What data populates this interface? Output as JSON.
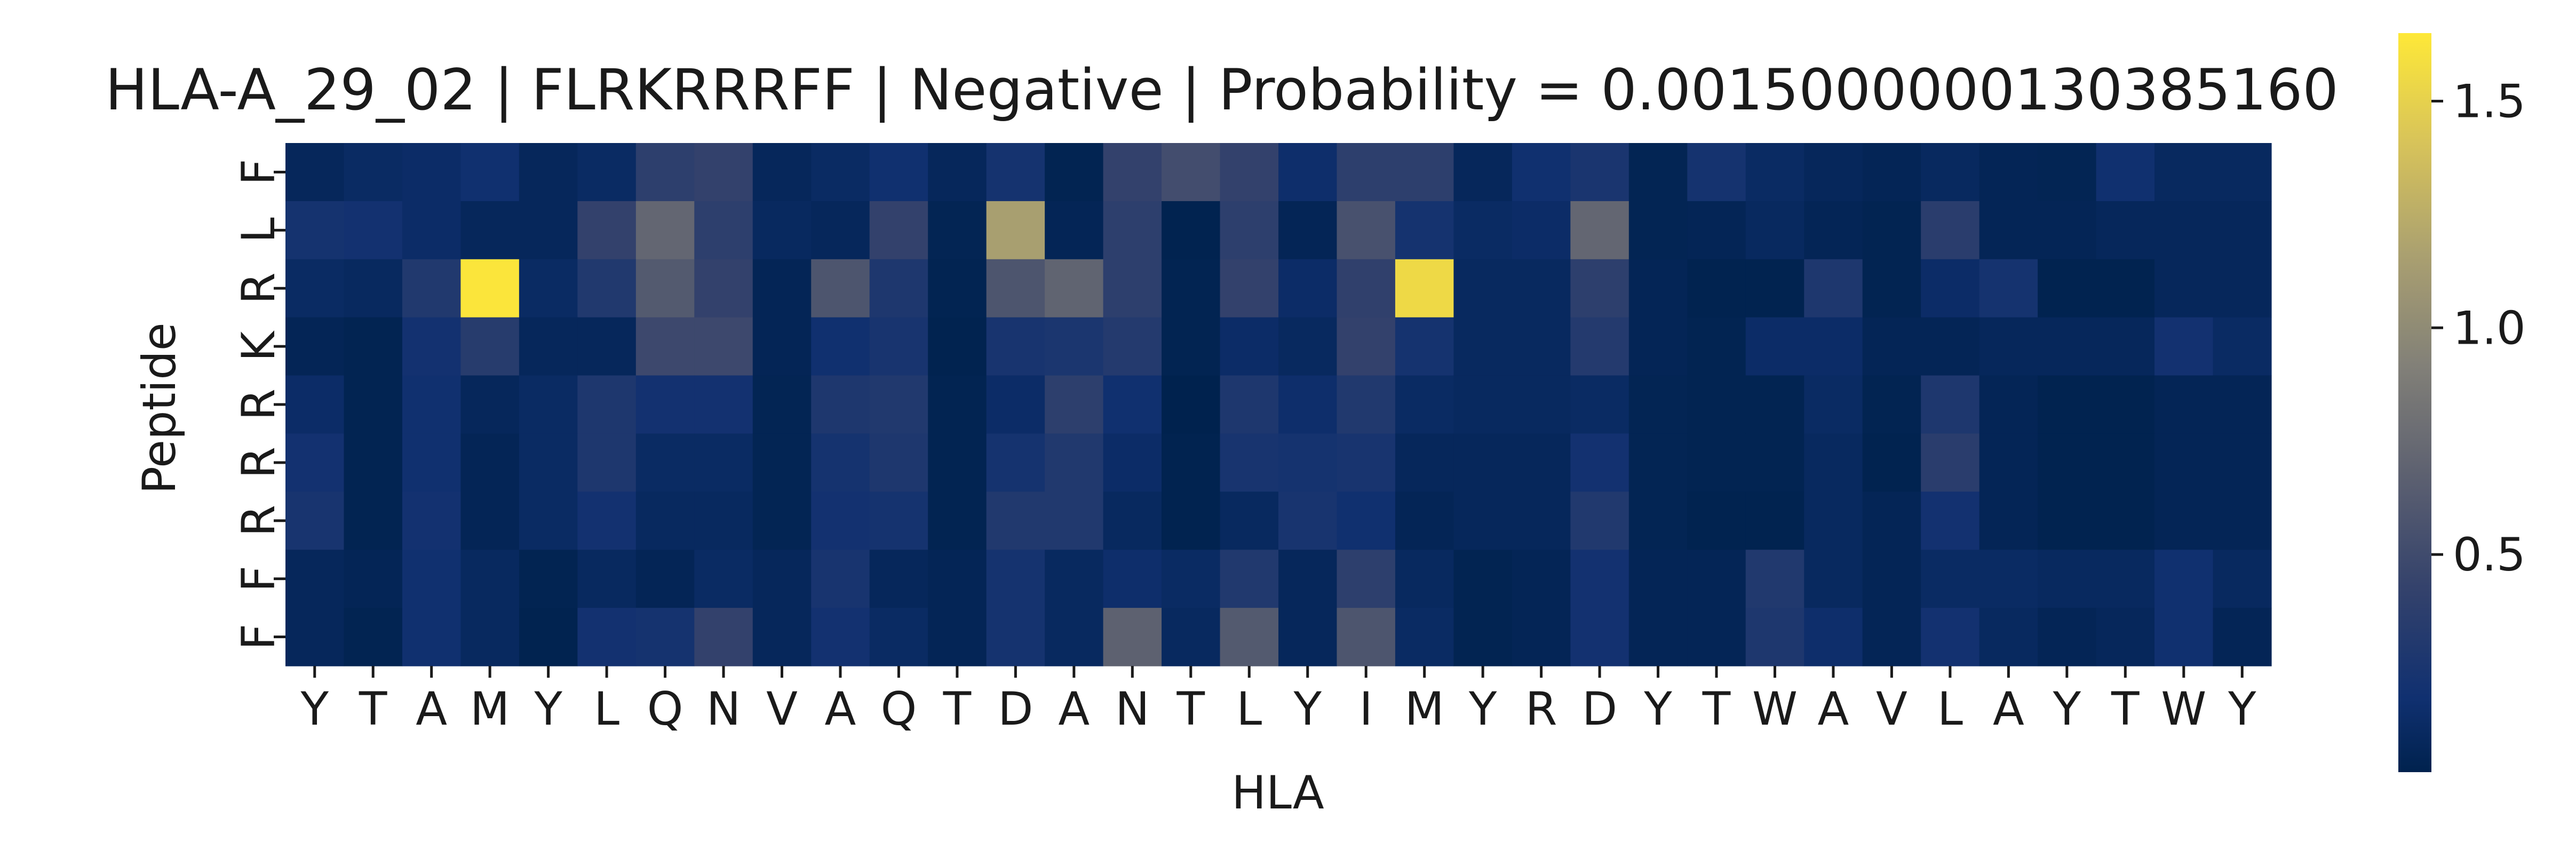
{
  "chart_data": {
    "type": "heatmap",
    "title": "HLA-A_29_02 | FLRKRRRFF | Negative | Probability = 0.0015000000130385160",
    "xlabel": "HLA",
    "ylabel": "Peptide",
    "x_categories": [
      "Y",
      "T",
      "A",
      "M",
      "Y",
      "L",
      "Q",
      "N",
      "V",
      "A",
      "Q",
      "T",
      "D",
      "A",
      "N",
      "T",
      "L",
      "Y",
      "I",
      "M",
      "Y",
      "R",
      "D",
      "Y",
      "T",
      "W",
      "A",
      "V",
      "L",
      "A",
      "Y",
      "T",
      "W",
      "Y"
    ],
    "y_categories": [
      "F",
      "L",
      "R",
      "K",
      "R",
      "R",
      "R",
      "F",
      "F"
    ],
    "values": [
      [
        0.08,
        0.12,
        0.14,
        0.18,
        0.08,
        0.12,
        0.38,
        0.42,
        0.08,
        0.12,
        0.18,
        0.08,
        0.22,
        0.04,
        0.42,
        0.52,
        0.42,
        0.16,
        0.38,
        0.38,
        0.08,
        0.18,
        0.25,
        0.05,
        0.22,
        0.12,
        0.08,
        0.06,
        0.1,
        0.06,
        0.05,
        0.18,
        0.1,
        0.1
      ],
      [
        0.22,
        0.2,
        0.14,
        0.08,
        0.08,
        0.42,
        0.72,
        0.38,
        0.1,
        0.08,
        0.42,
        0.05,
        1.15,
        0.06,
        0.38,
        0.03,
        0.38,
        0.06,
        0.55,
        0.22,
        0.12,
        0.14,
        0.72,
        0.05,
        0.06,
        0.1,
        0.06,
        0.04,
        0.36,
        0.06,
        0.06,
        0.08,
        0.08,
        0.08
      ],
      [
        0.12,
        0.1,
        0.3,
        1.63,
        0.12,
        0.3,
        0.62,
        0.42,
        0.06,
        0.58,
        0.28,
        0.04,
        0.58,
        0.7,
        0.38,
        0.04,
        0.42,
        0.14,
        0.4,
        1.55,
        0.1,
        0.1,
        0.38,
        0.06,
        0.03,
        0.03,
        0.28,
        0.04,
        0.14,
        0.22,
        0.03,
        0.03,
        0.08,
        0.08
      ],
      [
        0.06,
        0.04,
        0.2,
        0.34,
        0.08,
        0.08,
        0.48,
        0.48,
        0.06,
        0.18,
        0.24,
        0.03,
        0.24,
        0.26,
        0.32,
        0.04,
        0.14,
        0.1,
        0.42,
        0.22,
        0.1,
        0.1,
        0.32,
        0.06,
        0.04,
        0.14,
        0.14,
        0.06,
        0.06,
        0.08,
        0.08,
        0.08,
        0.2,
        0.12
      ],
      [
        0.14,
        0.04,
        0.18,
        0.08,
        0.12,
        0.28,
        0.2,
        0.2,
        0.05,
        0.28,
        0.3,
        0.04,
        0.14,
        0.38,
        0.18,
        0.02,
        0.28,
        0.16,
        0.3,
        0.12,
        0.1,
        0.1,
        0.12,
        0.05,
        0.04,
        0.04,
        0.12,
        0.04,
        0.28,
        0.06,
        0.03,
        0.03,
        0.06,
        0.06
      ],
      [
        0.2,
        0.04,
        0.18,
        0.06,
        0.12,
        0.28,
        0.12,
        0.12,
        0.05,
        0.22,
        0.28,
        0.04,
        0.22,
        0.3,
        0.14,
        0.03,
        0.24,
        0.22,
        0.24,
        0.08,
        0.08,
        0.08,
        0.2,
        0.05,
        0.04,
        0.04,
        0.1,
        0.03,
        0.36,
        0.06,
        0.03,
        0.03,
        0.06,
        0.06
      ],
      [
        0.24,
        0.04,
        0.2,
        0.06,
        0.12,
        0.2,
        0.1,
        0.1,
        0.05,
        0.2,
        0.22,
        0.04,
        0.3,
        0.3,
        0.1,
        0.03,
        0.1,
        0.24,
        0.18,
        0.06,
        0.08,
        0.08,
        0.3,
        0.05,
        0.03,
        0.03,
        0.1,
        0.06,
        0.2,
        0.06,
        0.03,
        0.03,
        0.06,
        0.06
      ],
      [
        0.08,
        0.06,
        0.18,
        0.1,
        0.04,
        0.1,
        0.06,
        0.12,
        0.08,
        0.24,
        0.08,
        0.06,
        0.22,
        0.1,
        0.16,
        0.12,
        0.3,
        0.08,
        0.38,
        0.1,
        0.04,
        0.06,
        0.2,
        0.06,
        0.06,
        0.3,
        0.1,
        0.06,
        0.12,
        0.12,
        0.1,
        0.1,
        0.18,
        0.1
      ],
      [
        0.08,
        0.04,
        0.18,
        0.1,
        0.03,
        0.2,
        0.22,
        0.42,
        0.08,
        0.2,
        0.12,
        0.06,
        0.22,
        0.1,
        0.68,
        0.1,
        0.62,
        0.08,
        0.58,
        0.12,
        0.04,
        0.06,
        0.2,
        0.06,
        0.06,
        0.28,
        0.16,
        0.06,
        0.2,
        0.1,
        0.06,
        0.08,
        0.18,
        0.06
      ]
    ],
    "vmin": 0.02,
    "vmax": 1.65,
    "colormap": "cividis",
    "colorbar_ticks": [
      {
        "value": 0.5,
        "label": "0.5"
      },
      {
        "value": 1.0,
        "label": "1.0"
      },
      {
        "value": 1.5,
        "label": "1.5"
      }
    ]
  }
}
